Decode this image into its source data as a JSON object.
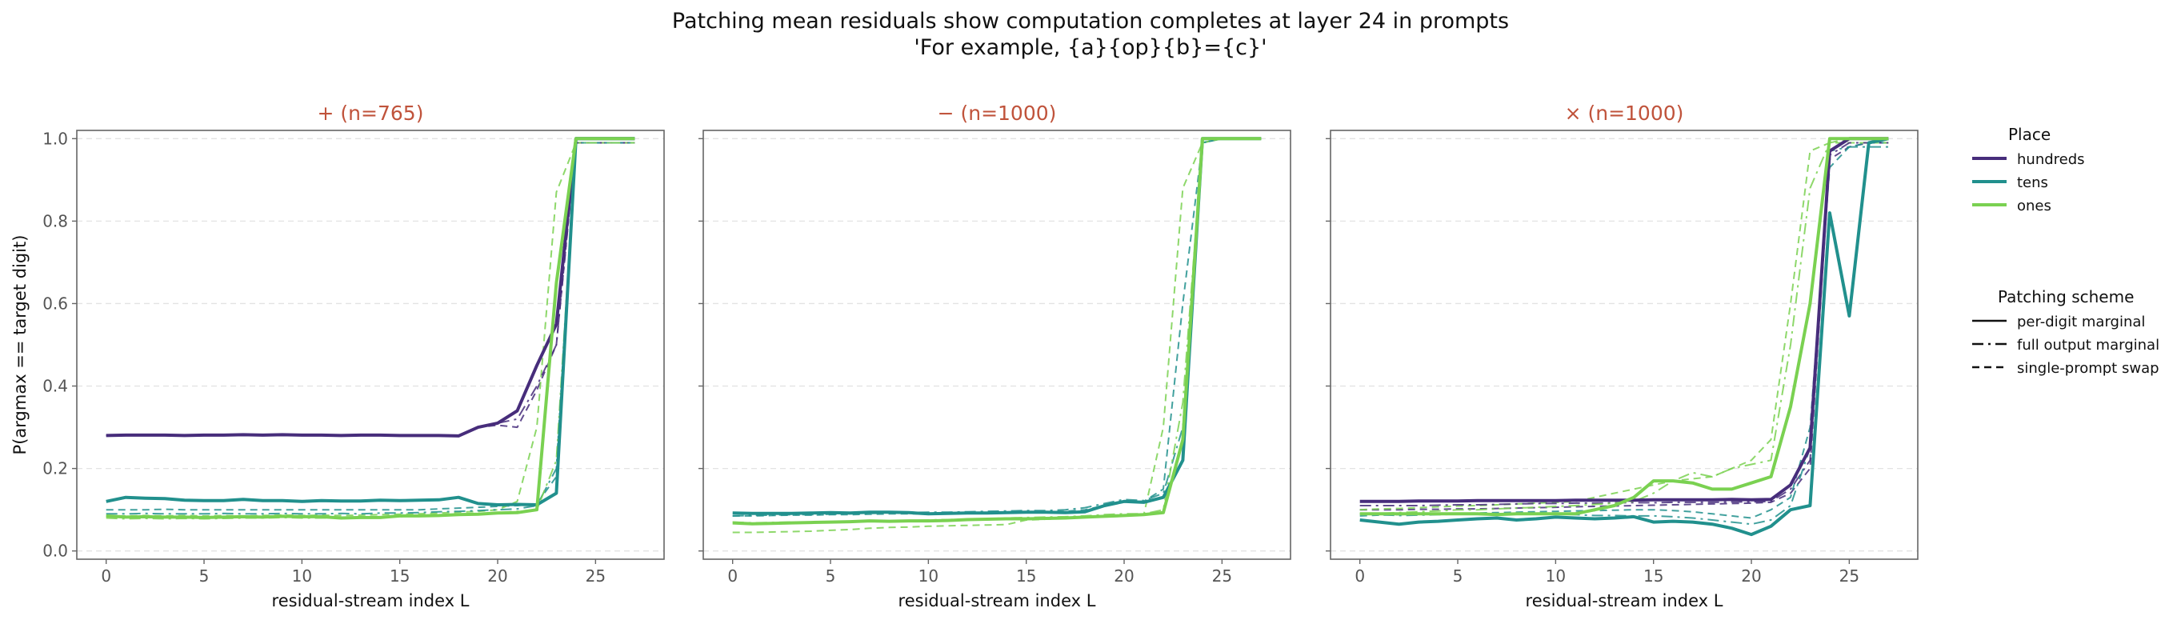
{
  "chart_data": {
    "type": "line",
    "title": "Patching mean residuals show computation completes at layer 24 in prompts",
    "subtitle": "'For example, {a}{op}{b}={c}'",
    "xlabel": "residual-stream index L",
    "ylabel": "P(argmax == target digit)",
    "xlim": [
      -1.5,
      28.5
    ],
    "ylim": [
      -0.02,
      1.02
    ],
    "x_ticks": [
      0,
      5,
      10,
      15,
      20,
      25
    ],
    "y_ticks": [
      0.0,
      0.2,
      0.4,
      0.6,
      0.8,
      1.0
    ],
    "y_tick_labels": [
      "0.0",
      "0.2",
      "0.4",
      "0.6",
      "0.8",
      "1.0"
    ],
    "grid": true,
    "legend_place": {
      "title": "Place",
      "entries": [
        {
          "key": "hundreds",
          "label": "hundreds",
          "color": "#472d7b"
        },
        {
          "key": "tens",
          "label": "tens",
          "color": "#21908d"
        },
        {
          "key": "ones",
          "label": "ones",
          "color": "#7ad151"
        }
      ]
    },
    "legend_scheme": {
      "title": "Patching scheme",
      "entries": [
        {
          "key": "per_digit",
          "label": "per-digit marginal",
          "dash": "solid"
        },
        {
          "key": "full_output",
          "label": "full output marginal",
          "dash": "dashdot"
        },
        {
          "key": "single_swap",
          "label": "single-prompt swap",
          "dash": "dashed"
        }
      ]
    },
    "panels": [
      {
        "label": "+  (n=765)",
        "series": [
          {
            "place": "hundreds",
            "scheme": "per_digit",
            "values": [
              0.28,
              0.281,
              0.281,
              0.281,
              0.28,
              0.281,
              0.281,
              0.282,
              0.281,
              0.282,
              0.281,
              0.281,
              0.28,
              0.281,
              0.281,
              0.28,
              0.28,
              0.28,
              0.279,
              0.3,
              0.31,
              0.34,
              0.45,
              0.55,
              1.0,
              1.0,
              1.0,
              1.0
            ]
          },
          {
            "place": "tens",
            "scheme": "per_digit",
            "values": [
              0.12,
              0.13,
              0.128,
              0.127,
              0.123,
              0.122,
              0.122,
              0.125,
              0.122,
              0.122,
              0.12,
              0.122,
              0.121,
              0.121,
              0.123,
              0.122,
              0.123,
              0.124,
              0.13,
              0.115,
              0.112,
              0.113,
              0.112,
              0.14,
              1.0,
              1.0,
              1.0,
              1.0
            ]
          },
          {
            "place": "ones",
            "scheme": "per_digit",
            "values": [
              0.085,
              0.082,
              0.083,
              0.082,
              0.082,
              0.081,
              0.082,
              0.083,
              0.082,
              0.084,
              0.083,
              0.083,
              0.08,
              0.081,
              0.081,
              0.085,
              0.085,
              0.086,
              0.088,
              0.089,
              0.092,
              0.093,
              0.1,
              0.65,
              1.0,
              1.0,
              1.0,
              1.0
            ]
          },
          {
            "place": "hundreds",
            "scheme": "full_output",
            "values": [
              0.28,
              0.281,
              0.281,
              0.281,
              0.28,
              0.281,
              0.281,
              0.282,
              0.281,
              0.282,
              0.281,
              0.281,
              0.28,
              0.281,
              0.281,
              0.28,
              0.28,
              0.28,
              0.279,
              0.3,
              0.31,
              0.32,
              0.4,
              0.5,
              0.99,
              0.99,
              0.99,
              0.99
            ]
          },
          {
            "place": "tens",
            "scheme": "full_output",
            "values": [
              0.09,
              0.09,
              0.091,
              0.09,
              0.09,
              0.09,
              0.091,
              0.09,
              0.09,
              0.091,
              0.09,
              0.09,
              0.091,
              0.09,
              0.092,
              0.092,
              0.093,
              0.095,
              0.096,
              0.098,
              0.1,
              0.102,
              0.11,
              0.2,
              0.99,
              0.99,
              0.99,
              0.99
            ]
          },
          {
            "place": "ones",
            "scheme": "full_output",
            "values": [
              0.08,
              0.078,
              0.079,
              0.078,
              0.079,
              0.078,
              0.079,
              0.08,
              0.08,
              0.081,
              0.08,
              0.08,
              0.081,
              0.082,
              0.083,
              0.083,
              0.085,
              0.086,
              0.088,
              0.09,
              0.093,
              0.096,
              0.1,
              0.22,
              0.99,
              0.99,
              0.99,
              0.99
            ]
          },
          {
            "place": "hundreds",
            "scheme": "single_swap",
            "values": [
              0.28,
              0.281,
              0.281,
              0.281,
              0.28,
              0.281,
              0.281,
              0.282,
              0.281,
              0.282,
              0.281,
              0.281,
              0.28,
              0.281,
              0.281,
              0.28,
              0.28,
              0.28,
              0.279,
              0.3,
              0.305,
              0.3,
              0.39,
              0.5,
              0.99,
              0.99,
              0.99,
              0.99
            ]
          },
          {
            "place": "tens",
            "scheme": "single_swap",
            "values": [
              0.1,
              0.1,
              0.1,
              0.101,
              0.1,
              0.1,
              0.1,
              0.1,
              0.1,
              0.1,
              0.1,
              0.1,
              0.1,
              0.1,
              0.1,
              0.1,
              0.1,
              0.102,
              0.104,
              0.106,
              0.108,
              0.11,
              0.115,
              0.18,
              0.99,
              0.99,
              0.99,
              0.99
            ]
          },
          {
            "place": "ones",
            "scheme": "single_swap",
            "values": [
              0.085,
              0.085,
              0.086,
              0.085,
              0.086,
              0.085,
              0.086,
              0.085,
              0.086,
              0.087,
              0.086,
              0.087,
              0.086,
              0.087,
              0.088,
              0.089,
              0.09,
              0.092,
              0.094,
              0.096,
              0.1,
              0.12,
              0.3,
              0.87,
              0.99,
              0.99,
              0.99,
              0.99
            ]
          }
        ]
      },
      {
        "label": "−  (n=1000)",
        "series": [
          {
            "place": "tens",
            "scheme": "per_digit",
            "values": [
              0.092,
              0.091,
              0.091,
              0.091,
              0.092,
              0.093,
              0.092,
              0.094,
              0.094,
              0.093,
              0.09,
              0.091,
              0.092,
              0.092,
              0.093,
              0.094,
              0.094,
              0.093,
              0.095,
              0.11,
              0.12,
              0.118,
              0.13,
              0.22,
              1.0,
              1.0,
              1.0,
              1.0
            ]
          },
          {
            "place": "ones",
            "scheme": "per_digit",
            "values": [
              0.068,
              0.066,
              0.067,
              0.068,
              0.069,
              0.07,
              0.071,
              0.073,
              0.072,
              0.073,
              0.073,
              0.074,
              0.076,
              0.077,
              0.078,
              0.078,
              0.079,
              0.08,
              0.082,
              0.084,
              0.086,
              0.088,
              0.093,
              0.27,
              1.0,
              1.0,
              1.0,
              1.0
            ]
          },
          {
            "place": "tens",
            "scheme": "full_output",
            "values": [
              0.085,
              0.086,
              0.087,
              0.088,
              0.088,
              0.089,
              0.09,
              0.091,
              0.092,
              0.093,
              0.094,
              0.094,
              0.095,
              0.096,
              0.097,
              0.098,
              0.098,
              0.1,
              0.105,
              0.115,
              0.125,
              0.122,
              0.14,
              0.3,
              0.99,
              1.0,
              1.0,
              1.0
            ]
          },
          {
            "place": "ones",
            "scheme": "full_output",
            "values": [
              0.07,
              0.068,
              0.069,
              0.07,
              0.07,
              0.071,
              0.071,
              0.072,
              0.073,
              0.074,
              0.075,
              0.076,
              0.077,
              0.078,
              0.08,
              0.081,
              0.082,
              0.083,
              0.085,
              0.088,
              0.09,
              0.09,
              0.1,
              0.36,
              0.99,
              1.0,
              1.0,
              1.0
            ]
          },
          {
            "place": "tens",
            "scheme": "single_swap",
            "values": [
              0.085,
              0.085,
              0.086,
              0.087,
              0.087,
              0.088,
              0.088,
              0.089,
              0.09,
              0.09,
              0.09,
              0.091,
              0.091,
              0.092,
              0.093,
              0.094,
              0.095,
              0.096,
              0.1,
              0.11,
              0.12,
              0.12,
              0.15,
              0.6,
              0.99,
              1.0,
              1.0,
              1.0
            ]
          },
          {
            "place": "ones",
            "scheme": "single_swap",
            "values": [
              0.045,
              0.045,
              0.046,
              0.047,
              0.048,
              0.05,
              0.052,
              0.055,
              0.057,
              0.058,
              0.06,
              0.061,
              0.062,
              0.063,
              0.064,
              0.075,
              0.077,
              0.079,
              0.081,
              0.083,
              0.085,
              0.087,
              0.3,
              0.88,
              0.99,
              1.0,
              1.0,
              1.0
            ]
          }
        ]
      },
      {
        "label": "×  (n=1000)",
        "series": [
          {
            "place": "hundreds",
            "scheme": "per_digit",
            "values": [
              0.12,
              0.12,
              0.12,
              0.121,
              0.121,
              0.121,
              0.122,
              0.122,
              0.122,
              0.122,
              0.122,
              0.123,
              0.123,
              0.123,
              0.123,
              0.124,
              0.124,
              0.124,
              0.124,
              0.125,
              0.124,
              0.125,
              0.16,
              0.25,
              0.97,
              1.0,
              1.0,
              1.0
            ]
          },
          {
            "place": "tens",
            "scheme": "per_digit",
            "values": [
              0.075,
              0.07,
              0.065,
              0.07,
              0.072,
              0.075,
              0.078,
              0.08,
              0.075,
              0.078,
              0.082,
              0.08,
              0.078,
              0.08,
              0.083,
              0.07,
              0.072,
              0.07,
              0.065,
              0.055,
              0.04,
              0.06,
              0.1,
              0.11,
              0.82,
              0.57,
              0.99,
              1.0
            ]
          },
          {
            "place": "ones",
            "scheme": "per_digit",
            "values": [
              0.09,
              0.09,
              0.09,
              0.09,
              0.09,
              0.09,
              0.09,
              0.088,
              0.09,
              0.09,
              0.09,
              0.09,
              0.1,
              0.11,
              0.13,
              0.17,
              0.17,
              0.165,
              0.15,
              0.15,
              0.165,
              0.18,
              0.35,
              0.6,
              1.0,
              1.0,
              1.0,
              1.0
            ]
          },
          {
            "place": "hundreds",
            "scheme": "full_output",
            "values": [
              0.11,
              0.11,
              0.11,
              0.11,
              0.111,
              0.112,
              0.112,
              0.113,
              0.114,
              0.115,
              0.115,
              0.116,
              0.116,
              0.117,
              0.117,
              0.117,
              0.118,
              0.118,
              0.118,
              0.119,
              0.119,
              0.12,
              0.15,
              0.22,
              0.96,
              0.99,
              0.99,
              0.99
            ]
          },
          {
            "place": "tens",
            "scheme": "full_output",
            "values": [
              0.09,
              0.088,
              0.086,
              0.087,
              0.088,
              0.089,
              0.09,
              0.09,
              0.09,
              0.09,
              0.09,
              0.088,
              0.086,
              0.086,
              0.085,
              0.085,
              0.083,
              0.08,
              0.075,
              0.07,
              0.065,
              0.075,
              0.11,
              0.25,
              0.97,
              0.98,
              0.98,
              0.98
            ]
          },
          {
            "place": "ones",
            "scheme": "full_output",
            "values": [
              0.09,
              0.091,
              0.093,
              0.095,
              0.097,
              0.1,
              0.1,
              0.102,
              0.104,
              0.106,
              0.108,
              0.11,
              0.113,
              0.116,
              0.12,
              0.14,
              0.17,
              0.19,
              0.18,
              0.2,
              0.21,
              0.22,
              0.5,
              0.88,
              0.99,
              1.0,
              1.0,
              1.0
            ]
          },
          {
            "place": "hundreds",
            "scheme": "single_swap",
            "values": [
              0.1,
              0.1,
              0.1,
              0.101,
              0.101,
              0.102,
              0.102,
              0.103,
              0.104,
              0.105,
              0.106,
              0.107,
              0.108,
              0.109,
              0.11,
              0.111,
              0.112,
              0.113,
              0.114,
              0.115,
              0.116,
              0.118,
              0.14,
              0.2,
              0.95,
              0.98,
              0.99,
              0.99
            ]
          },
          {
            "place": "tens",
            "scheme": "single_swap",
            "values": [
              0.085,
              0.087,
              0.088,
              0.089,
              0.09,
              0.091,
              0.092,
              0.093,
              0.094,
              0.095,
              0.096,
              0.097,
              0.098,
              0.099,
              0.1,
              0.1,
              0.098,
              0.095,
              0.09,
              0.085,
              0.08,
              0.1,
              0.13,
              0.3,
              0.93,
              0.98,
              0.99,
              0.99
            ]
          },
          {
            "place": "ones",
            "scheme": "single_swap",
            "values": [
              0.1,
              0.102,
              0.103,
              0.105,
              0.107,
              0.109,
              0.11,
              0.112,
              0.114,
              0.116,
              0.118,
              0.12,
              0.13,
              0.14,
              0.15,
              0.16,
              0.17,
              0.175,
              0.18,
              0.2,
              0.22,
              0.27,
              0.6,
              0.97,
              0.99,
              0.99,
              0.99,
              0.99
            ]
          }
        ]
      }
    ]
  }
}
